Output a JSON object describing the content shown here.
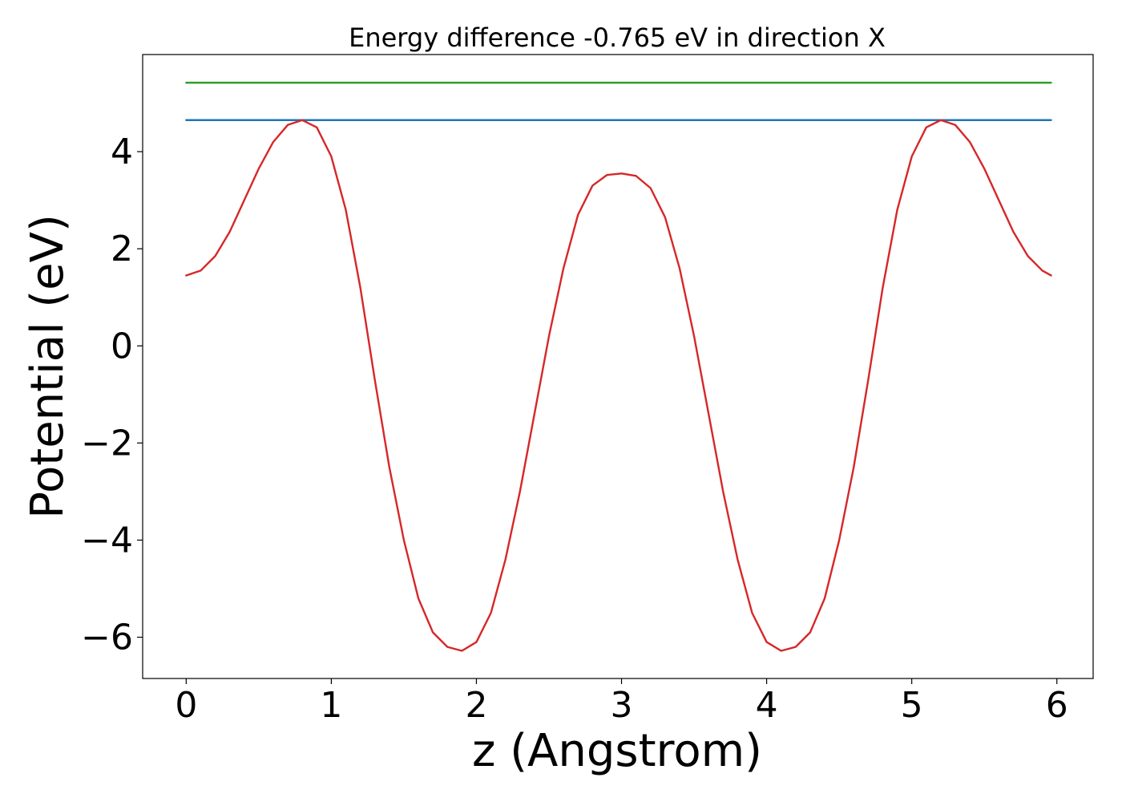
{
  "chart_data": {
    "type": "line",
    "title": "Energy difference -0.765 eV in direction X",
    "xlabel": "z (Angstrom)",
    "ylabel": "Potential (eV)",
    "xlim": [
      -0.3,
      6.25
    ],
    "ylim": [
      -6.85,
      6.0
    ],
    "x_ticks": [
      0,
      1,
      2,
      3,
      4,
      5,
      6
    ],
    "x_tick_labels": [
      "0",
      "1",
      "2",
      "3",
      "4",
      "5",
      "6"
    ],
    "y_ticks": [
      -6,
      -4,
      -2,
      0,
      2,
      4
    ],
    "y_tick_labels": [
      "−6",
      "−4",
      "−2",
      "0",
      "2",
      "4"
    ],
    "grid": false,
    "series": [
      {
        "color": "#2ca02c",
        "x": [
          0,
          5.96
        ],
        "y": [
          5.42,
          5.42
        ]
      },
      {
        "color": "#1f77b4",
        "x": [
          0,
          5.96
        ],
        "y": [
          4.65,
          4.65
        ]
      },
      {
        "color": "#d62728",
        "x": [
          0,
          0.1,
          0.2,
          0.3,
          0.4,
          0.5,
          0.6,
          0.7,
          0.8,
          0.9,
          1.0,
          1.1,
          1.2,
          1.3,
          1.4,
          1.5,
          1.6,
          1.7,
          1.8,
          1.9,
          2.0,
          2.1,
          2.2,
          2.3,
          2.4,
          2.5,
          2.6,
          2.7,
          2.8,
          2.9,
          3.0,
          3.1,
          3.2,
          3.3,
          3.4,
          3.5,
          3.6,
          3.7,
          3.8,
          3.9,
          4.0,
          4.1,
          4.2,
          4.3,
          4.4,
          4.5,
          4.6,
          4.7,
          4.8,
          4.9,
          5.0,
          5.1,
          5.2,
          5.3,
          5.4,
          5.5,
          5.6,
          5.7,
          5.8,
          5.9,
          5.96
        ],
        "y": [
          1.45,
          1.55,
          1.85,
          2.35,
          3.0,
          3.65,
          4.2,
          4.55,
          4.65,
          4.5,
          3.9,
          2.8,
          1.2,
          -0.7,
          -2.5,
          -4.0,
          -5.2,
          -5.9,
          -6.2,
          -6.28,
          -6.1,
          -5.5,
          -4.4,
          -3.0,
          -1.4,
          0.2,
          1.6,
          2.7,
          3.3,
          3.52,
          3.55,
          3.5,
          3.25,
          2.65,
          1.6,
          0.2,
          -1.4,
          -3.0,
          -4.4,
          -5.5,
          -6.1,
          -6.28,
          -6.2,
          -5.9,
          -5.2,
          -4.0,
          -2.5,
          -0.7,
          1.2,
          2.8,
          3.9,
          4.5,
          4.65,
          4.55,
          4.2,
          3.65,
          3.0,
          2.35,
          1.85,
          1.55,
          1.45
        ]
      }
    ]
  }
}
